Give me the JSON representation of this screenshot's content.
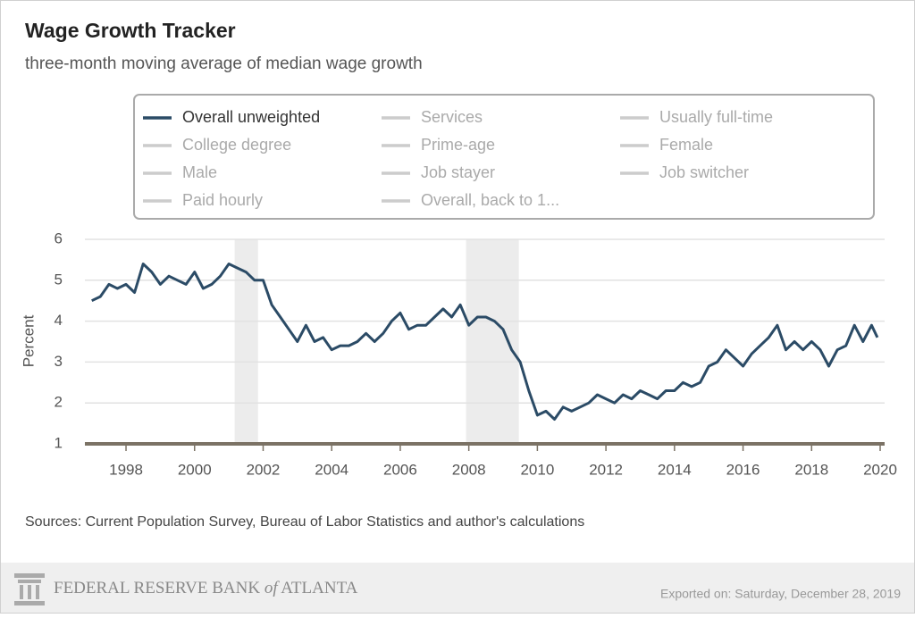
{
  "chart_data": {
    "type": "line",
    "title": "Wage Growth Tracker",
    "subtitle": "three-month moving average of median wage growth",
    "y_label": "Percent",
    "source": "Sources: Current Population Survey, Bureau of Labor Statistics and author's calculations",
    "brand": [
      "FEDERAL RESERVE BANK ",
      "of",
      " ATLANTA"
    ],
    "export_note": "Exported on: Saturday, December 28, 2019",
    "xlim": [
      1996.8,
      2020.13
    ],
    "ylim": [
      1,
      6
    ],
    "xticks": [
      1998,
      2000,
      2002,
      2004,
      2006,
      2008,
      2010,
      2012,
      2014,
      2016,
      2018,
      2020
    ],
    "yticks": [
      1,
      2,
      3,
      4,
      5,
      6
    ],
    "grid": true,
    "recessions": [
      [
        2001.17,
        2001.85
      ],
      [
        2007.92,
        2009.46
      ]
    ],
    "x": [
      1997.0,
      1997.25,
      1997.5,
      1997.75,
      1998.0,
      1998.25,
      1998.5,
      1998.75,
      1999.0,
      1999.25,
      1999.5,
      1999.75,
      2000.0,
      2000.25,
      2000.5,
      2000.75,
      2001.0,
      2001.25,
      2001.5,
      2001.75,
      2002.0,
      2002.25,
      2002.5,
      2002.75,
      2003.0,
      2003.25,
      2003.5,
      2003.75,
      2004.0,
      2004.25,
      2004.5,
      2004.75,
      2005.0,
      2005.25,
      2005.5,
      2005.75,
      2006.0,
      2006.25,
      2006.5,
      2006.75,
      2007.0,
      2007.25,
      2007.5,
      2007.75,
      2008.0,
      2008.25,
      2008.5,
      2008.75,
      2009.0,
      2009.25,
      2009.5,
      2009.75,
      2010.0,
      2010.25,
      2010.5,
      2010.75,
      2011.0,
      2011.25,
      2011.5,
      2011.75,
      2012.0,
      2012.25,
      2012.5,
      2012.75,
      2013.0,
      2013.25,
      2013.5,
      2013.75,
      2014.0,
      2014.25,
      2014.5,
      2014.75,
      2015.0,
      2015.25,
      2015.5,
      2015.75,
      2016.0,
      2016.25,
      2016.5,
      2016.75,
      2017.0,
      2017.25,
      2017.5,
      2017.75,
      2018.0,
      2018.25,
      2018.5,
      2018.75,
      2019.0,
      2019.25,
      2019.5,
      2019.75,
      2019.92
    ],
    "series": [
      {
        "name": "Overall unweighted",
        "color": "#2b4b66",
        "values": [
          4.5,
          4.6,
          4.9,
          4.8,
          4.9,
          4.7,
          5.4,
          5.2,
          4.9,
          5.1,
          5.0,
          4.9,
          5.2,
          4.8,
          4.9,
          5.1,
          5.4,
          5.3,
          5.2,
          5.0,
          5.0,
          4.4,
          4.1,
          3.8,
          3.5,
          3.9,
          3.5,
          3.6,
          3.3,
          3.4,
          3.4,
          3.5,
          3.7,
          3.5,
          3.7,
          4.0,
          4.2,
          3.8,
          3.9,
          3.9,
          4.1,
          4.3,
          4.1,
          4.4,
          3.9,
          4.1,
          4.1,
          4.0,
          3.8,
          3.3,
          3.0,
          2.3,
          1.7,
          1.8,
          1.6,
          1.9,
          1.8,
          1.9,
          2.0,
          2.2,
          2.1,
          2.0,
          2.2,
          2.1,
          2.3,
          2.2,
          2.1,
          2.3,
          2.3,
          2.5,
          2.4,
          2.5,
          2.9,
          3.0,
          3.3,
          3.1,
          2.9,
          3.2,
          3.4,
          3.6,
          3.9,
          3.3,
          3.5,
          3.3,
          3.5,
          3.3,
          2.9,
          3.3,
          3.4,
          3.9,
          3.5,
          3.9,
          3.6
        ]
      }
    ],
    "hidden_series": {
      "color": "#cccccc",
      "names": [
        "Services",
        "Usually full-time",
        "College degree",
        "Prime-age",
        "Female",
        "Male",
        "Job stayer",
        "Job switcher",
        "Paid hourly",
        "Overall, back to 1..."
      ]
    }
  }
}
